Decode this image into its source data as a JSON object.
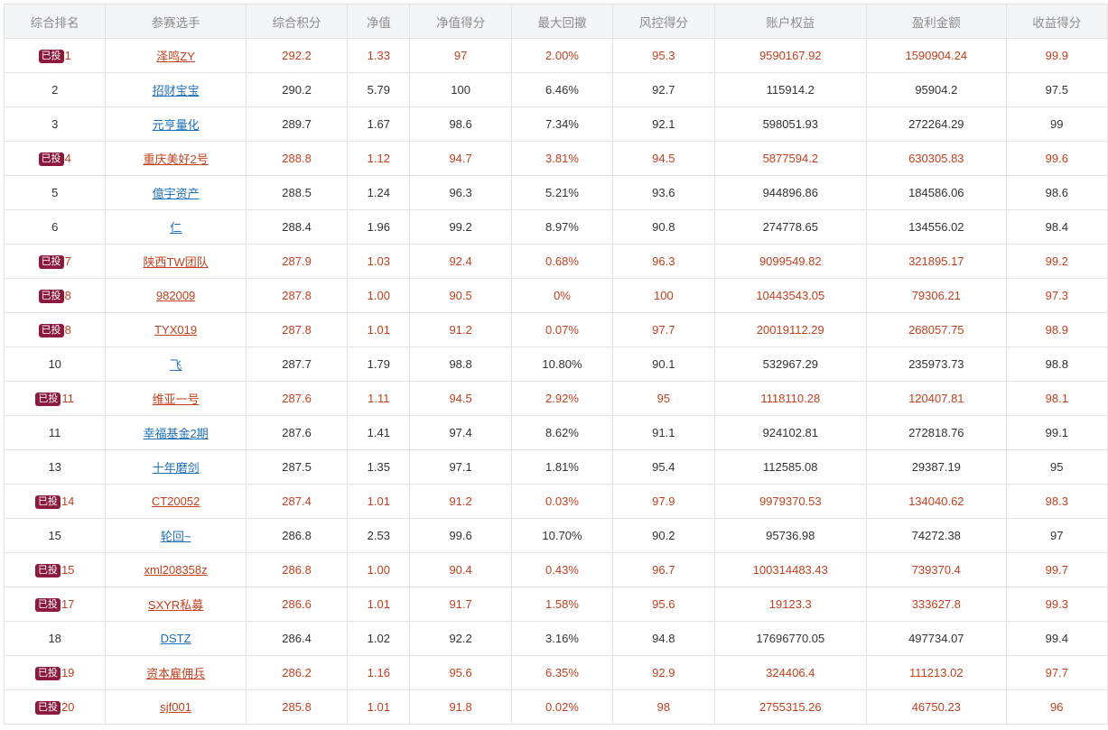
{
  "headers": [
    "综合排名",
    "参赛选手",
    "综合积分",
    "净值",
    "净值得分",
    "最大回撤",
    "风控得分",
    "账户权益",
    "盈利金额",
    "收益得分"
  ],
  "badge_label": "已投",
  "colors": {
    "invested_text": "#c1411f",
    "link_blue": "#1f6fb5",
    "badge_bg": "#8b1a3c",
    "header_bg": "#f4f5f7"
  },
  "rows": [
    {
      "invested": true,
      "rank": "1",
      "player": "泽鸣ZY",
      "score": "292.2",
      "nav": "1.33",
      "nav_score": "97",
      "drawdown": "2.00%",
      "risk_score": "95.3",
      "equity": "9590167.92",
      "profit": "1590904.24",
      "return_score": "99.9"
    },
    {
      "invested": false,
      "rank": "2",
      "player": "招财宝宝",
      "score": "290.2",
      "nav": "5.79",
      "nav_score": "100",
      "drawdown": "6.46%",
      "risk_score": "92.7",
      "equity": "115914.2",
      "profit": "95904.2",
      "return_score": "97.5"
    },
    {
      "invested": false,
      "rank": "3",
      "player": "元亨量化",
      "score": "289.7",
      "nav": "1.67",
      "nav_score": "98.6",
      "drawdown": "7.34%",
      "risk_score": "92.1",
      "equity": "598051.93",
      "profit": "272264.29",
      "return_score": "99"
    },
    {
      "invested": true,
      "rank": "4",
      "player": "重庆美好2号",
      "score": "288.8",
      "nav": "1.12",
      "nav_score": "94.7",
      "drawdown": "3.81%",
      "risk_score": "94.5",
      "equity": "5877594.2",
      "profit": "630305.83",
      "return_score": "99.6"
    },
    {
      "invested": false,
      "rank": "5",
      "player": "億宇资产",
      "score": "288.5",
      "nav": "1.24",
      "nav_score": "96.3",
      "drawdown": "5.21%",
      "risk_score": "93.6",
      "equity": "944896.86",
      "profit": "184586.06",
      "return_score": "98.6"
    },
    {
      "invested": false,
      "rank": "6",
      "player": "仁",
      "score": "288.4",
      "nav": "1.96",
      "nav_score": "99.2",
      "drawdown": "8.97%",
      "risk_score": "90.8",
      "equity": "274778.65",
      "profit": "134556.02",
      "return_score": "98.4"
    },
    {
      "invested": true,
      "rank": "7",
      "player": "陕西TW团队",
      "score": "287.9",
      "nav": "1.03",
      "nav_score": "92.4",
      "drawdown": "0.68%",
      "risk_score": "96.3",
      "equity": "9099549.82",
      "profit": "321895.17",
      "return_score": "99.2"
    },
    {
      "invested": true,
      "rank": "8",
      "player": "982009",
      "score": "287.8",
      "nav": "1.00",
      "nav_score": "90.5",
      "drawdown": "0%",
      "risk_score": "100",
      "equity": "10443543.05",
      "profit": "79306.21",
      "return_score": "97.3"
    },
    {
      "invested": true,
      "rank": "8",
      "player": "TYX019",
      "score": "287.8",
      "nav": "1.01",
      "nav_score": "91.2",
      "drawdown": "0.07%",
      "risk_score": "97.7",
      "equity": "20019112.29",
      "profit": "268057.75",
      "return_score": "98.9"
    },
    {
      "invested": false,
      "rank": "10",
      "player": "飞",
      "score": "287.7",
      "nav": "1.79",
      "nav_score": "98.8",
      "drawdown": "10.80%",
      "risk_score": "90.1",
      "equity": "532967.29",
      "profit": "235973.73",
      "return_score": "98.8"
    },
    {
      "invested": true,
      "rank": "11",
      "player": "维亚一号",
      "score": "287.6",
      "nav": "1.11",
      "nav_score": "94.5",
      "drawdown": "2.92%",
      "risk_score": "95",
      "equity": "1118110.28",
      "profit": "120407.81",
      "return_score": "98.1"
    },
    {
      "invested": false,
      "rank": "11",
      "player": "幸福基金2期",
      "score": "287.6",
      "nav": "1.41",
      "nav_score": "97.4",
      "drawdown": "8.62%",
      "risk_score": "91.1",
      "equity": "924102.81",
      "profit": "272818.76",
      "return_score": "99.1"
    },
    {
      "invested": false,
      "rank": "13",
      "player": "十年磨剑",
      "score": "287.5",
      "nav": "1.35",
      "nav_score": "97.1",
      "drawdown": "1.81%",
      "risk_score": "95.4",
      "equity": "112585.08",
      "profit": "29387.19",
      "return_score": "95"
    },
    {
      "invested": true,
      "rank": "14",
      "player": "CT20052",
      "score": "287.4",
      "nav": "1.01",
      "nav_score": "91.2",
      "drawdown": "0.03%",
      "risk_score": "97.9",
      "equity": "9979370.53",
      "profit": "134040.62",
      "return_score": "98.3"
    },
    {
      "invested": false,
      "rank": "15",
      "player": "轮回~",
      "score": "286.8",
      "nav": "2.53",
      "nav_score": "99.6",
      "drawdown": "10.70%",
      "risk_score": "90.2",
      "equity": "95736.98",
      "profit": "74272.38",
      "return_score": "97"
    },
    {
      "invested": true,
      "rank": "15",
      "player": "xml208358z",
      "score": "286.8",
      "nav": "1.00",
      "nav_score": "90.4",
      "drawdown": "0.43%",
      "risk_score": "96.7",
      "equity": "100314483.43",
      "profit": "739370.4",
      "return_score": "99.7"
    },
    {
      "invested": true,
      "rank": "17",
      "player": "SXYR私募",
      "score": "286.6",
      "nav": "1.01",
      "nav_score": "91.7",
      "drawdown": "1.58%",
      "risk_score": "95.6",
      "equity": "19123.3",
      "profit": "333627.8",
      "return_score": "99.3"
    },
    {
      "invested": false,
      "rank": "18",
      "player": "DSTZ",
      "score": "286.4",
      "nav": "1.02",
      "nav_score": "92.2",
      "drawdown": "3.16%",
      "risk_score": "94.8",
      "equity": "17696770.05",
      "profit": "497734.07",
      "return_score": "99.4"
    },
    {
      "invested": true,
      "rank": "19",
      "player": "资本雇佣兵",
      "score": "286.2",
      "nav": "1.16",
      "nav_score": "95.6",
      "drawdown": "6.35%",
      "risk_score": "92.9",
      "equity": "324406.4",
      "profit": "111213.02",
      "return_score": "97.7"
    },
    {
      "invested": true,
      "rank": "20",
      "player": "sjf001",
      "score": "285.8",
      "nav": "1.01",
      "nav_score": "91.8",
      "drawdown": "0.02%",
      "risk_score": "98",
      "equity": "2755315.26",
      "profit": "46750.23",
      "return_score": "96"
    }
  ]
}
